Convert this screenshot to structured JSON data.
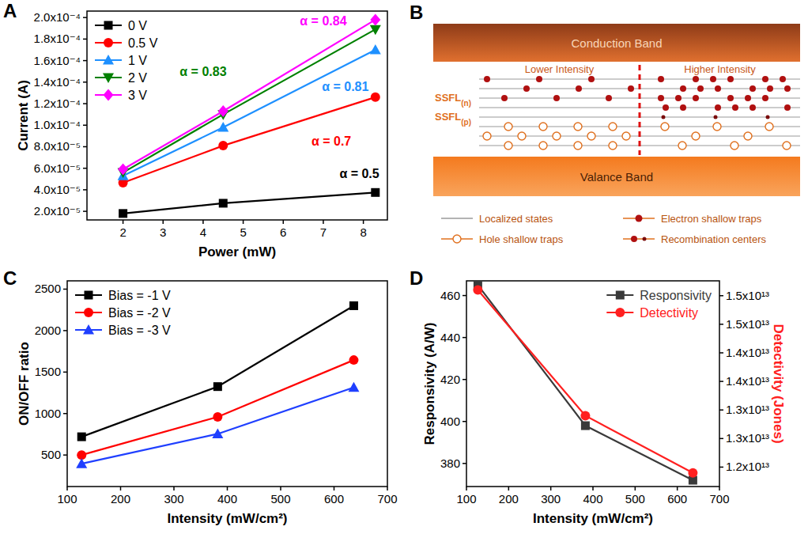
{
  "chart_data": [
    {
      "panel": "A",
      "type": "line",
      "x_label": "Power (mW)",
      "y_label": "Current (A)",
      "x": [
        2,
        4.5,
        8.3
      ],
      "xlim": [
        1.1,
        8.6
      ],
      "xticks": [
        2,
        3,
        4,
        5,
        6,
        7,
        8
      ],
      "ylim": [
        1.2e-05,
        0.000206
      ],
      "yticks": [
        {
          "value": 2e-05,
          "label": "2.0x10⁻⁵"
        },
        {
          "value": 4e-05,
          "label": "4.0x10⁻⁵"
        },
        {
          "value": 6e-05,
          "label": "6.0x10⁻⁵"
        },
        {
          "value": 8e-05,
          "label": "8.0x10⁻⁵"
        },
        {
          "value": 0.0001,
          "label": "1.0x10⁻⁴"
        },
        {
          "value": 0.00012,
          "label": "1.2x10⁻⁴"
        },
        {
          "value": 0.00014,
          "label": "1.4x10⁻⁴"
        },
        {
          "value": 0.00016,
          "label": "1.6x10⁻⁴"
        },
        {
          "value": 0.00018,
          "label": "1.8x10⁻⁴"
        },
        {
          "value": 0.0002,
          "label": "2.0x10⁻⁴"
        }
      ],
      "grid": false,
      "legend": "upper left",
      "series": [
        {
          "name": "0 V",
          "color": "#000000",
          "marker": "square",
          "values": [
            1.8e-05,
            2.75e-05,
            3.75e-05
          ]
        },
        {
          "name": "0.5 V",
          "color": "#ff0000",
          "marker": "circle",
          "values": [
            4.65e-05,
            8.1e-05,
            0.000126
          ]
        },
        {
          "name": "1 V",
          "color": "#1e90ff",
          "marker": "triangle-up",
          "values": [
            5.3e-05,
            9.8e-05,
            0.00017
          ]
        },
        {
          "name": "2 V",
          "color": "#008000",
          "marker": "triangle-down",
          "values": [
            5.6e-05,
            0.00011,
            0.000189
          ]
        },
        {
          "name": "3 V",
          "color": "#ff00ff",
          "marker": "diamond",
          "values": [
            5.9e-05,
            0.000113,
            0.000198
          ]
        }
      ],
      "annotations": [
        {
          "text": "α = 0.5",
          "x": 7.9,
          "y": 5.5e-05,
          "color": "#000000"
        },
        {
          "text": "α = 0.7",
          "x": 7.2,
          "y": 8.5e-05,
          "color": "#ff0000"
        },
        {
          "text": "α = 0.81",
          "x": 7.55,
          "y": 0.000136,
          "color": "#1e90ff"
        },
        {
          "text": "α = 0.83",
          "x": 4.0,
          "y": 0.00015,
          "color": "#008000"
        },
        {
          "text": "α = 0.84",
          "x": 7.0,
          "y": 0.000197,
          "color": "#ff00ff"
        }
      ]
    },
    {
      "panel": "C",
      "type": "line",
      "x_label": "Intensity (mW/cm²)",
      "y_label": "ON/OFF ratio",
      "x": [
        127,
        382,
        637
      ],
      "xlim": [
        100,
        700
      ],
      "xticks": [
        100,
        200,
        300,
        400,
        500,
        600,
        700
      ],
      "ylim": [
        120,
        2600
      ],
      "yticks": [
        500,
        1000,
        1500,
        2000,
        2500
      ],
      "grid": false,
      "legend": "upper left",
      "series": [
        {
          "name": "Bias = -1 V",
          "color": "#000000",
          "marker": "square",
          "values": [
            720,
            1325,
            2300
          ]
        },
        {
          "name": "Bias = -2 V",
          "color": "#ff0000",
          "marker": "circle",
          "values": [
            500,
            960,
            1645
          ]
        },
        {
          "name": "Bias = -3 V",
          "color": "#1f3fff",
          "marker": "triangle-up",
          "values": [
            395,
            755,
            1315
          ]
        }
      ]
    },
    {
      "panel": "D",
      "type": "line",
      "x_label": "Intensity (mW/cm²)",
      "y_label": "Responsivity (A/W)",
      "y2_label": "Detectivity (Jones)",
      "x": [
        127,
        382,
        637
      ],
      "xlim": [
        100,
        700
      ],
      "xticks": [
        100,
        200,
        300,
        400,
        500,
        600,
        700
      ],
      "ylim": [
        369,
        467
      ],
      "yticks": [
        380,
        400,
        420,
        440,
        460
      ],
      "y2lim": [
        11660000000000,
        15260000000000
      ],
      "y2ticks": [
        {
          "value": 12000000000000,
          "label": "1.2x10¹³"
        },
        {
          "value": 12500000000000,
          "label": "1.3x10¹³"
        },
        {
          "value": 13000000000000,
          "label": "1.3x10¹³"
        },
        {
          "value": 13500000000000,
          "label": "1.4x10¹³"
        },
        {
          "value": 14000000000000,
          "label": "1.4x10¹³"
        },
        {
          "value": 14500000000000,
          "label": "1.5x10¹³"
        },
        {
          "value": 15000000000000,
          "label": "1.5x10¹³"
        }
      ],
      "grid": false,
      "legend": "upper right",
      "series": [
        {
          "name": "Responsivity",
          "color": "#3a3a3a",
          "marker": "square",
          "values": [
            465,
            398,
            372
          ]
        },
        {
          "name": "Detectivity",
          "color": "#ff2020",
          "marker": "circle",
          "axis": "y2",
          "values": [
            15100000000000,
            12900000000000,
            11900000000000
          ]
        }
      ]
    }
  ],
  "diagram": {
    "panel": "B",
    "conduction_band": "Conduction Band",
    "valence_band": "Valance Band",
    "lower_intensity": "Lower Intensity",
    "higher_intensity": "Higher Intensity",
    "levels": [
      {
        "text": "SSFL",
        "subscript": "(n)"
      },
      {
        "text": "SSFL",
        "subscript": "(p)"
      }
    ],
    "key_items": [
      "Localized states",
      "Electron shallow traps",
      "Hole shallow traps",
      "Recombination centers"
    ]
  }
}
